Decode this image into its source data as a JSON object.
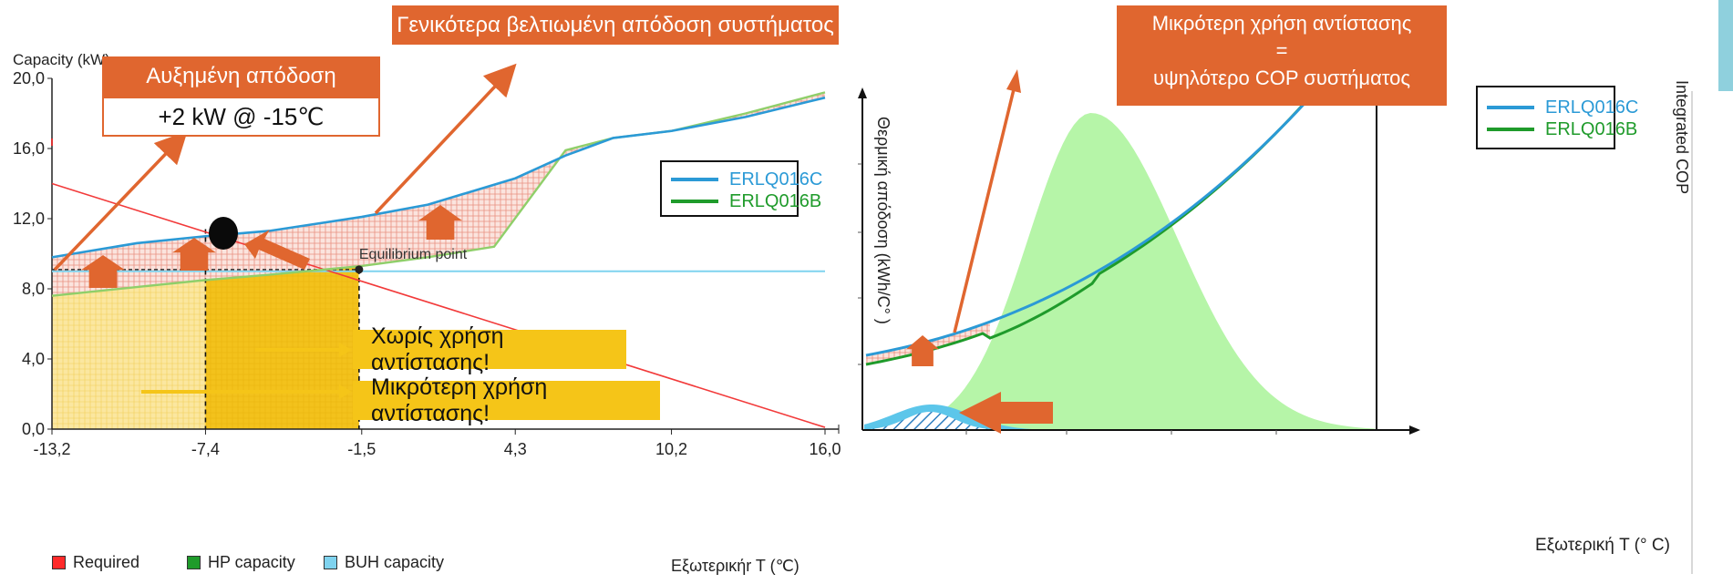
{
  "left_chart": {
    "ylabel": "Capacity (kW)",
    "xlabel": "Εξωτερικήr T (℃)",
    "yticks": [
      "20,0",
      "16,0",
      "12,0",
      "8,0",
      "4,0",
      "0,0"
    ],
    "xticks": [
      "-13,2",
      "-7,4",
      "-1,5",
      "4,3",
      "10,2",
      "16,0"
    ],
    "equilibrium_label": "Equilibrium point",
    "bottom_legend": [
      {
        "label": "Required",
        "color": "#ff2a2a"
      },
      {
        "label": "HP capacity",
        "color": "#1f9b2b"
      },
      {
        "label": "BUH capacity",
        "color": "#7fd3ef"
      }
    ],
    "legend": [
      {
        "label": "ERLQ016C",
        "color": "#2b9ad6"
      },
      {
        "label": "ERLQ016B",
        "color": "#1f9b2b"
      }
    ]
  },
  "right_chart": {
    "ylabel_left": "Θερμική απόδοση (kWh/C° )",
    "ylabel_right": "Integrated COP",
    "xlabel": "Εξωτερική T (° C)",
    "legend": [
      {
        "label": "ERLQ016C",
        "color": "#2b9ad6"
      },
      {
        "label": "ERLQ016B",
        "color": "#1f9b2b"
      }
    ]
  },
  "callouts": {
    "general_performance": "Γενικότερα βελτιωμένη απόδοση συστήματος",
    "increased_performance": "Αυξημένη απόδοση",
    "increased_value": "+2 kW @ -15℃",
    "no_heater": "Χωρίς χρήση αντίστασης!",
    "less_heater": "Μικρότερη χρήση αντίστασης!",
    "cop_line1": "Μικρότερη χρήση αντίστασης",
    "cop_line2": "=",
    "cop_line3": "υψηλότερο COP συστήματος"
  },
  "chart_data": [
    {
      "type": "line",
      "ylabel": "Capacity (kW)",
      "xlabel": "Εξωτερικήr T (℃)",
      "xlim": [
        -13.2,
        16.0
      ],
      "ylim": [
        0,
        20
      ],
      "xticks": [
        -13.2,
        -7.4,
        -1.5,
        4.3,
        10.2,
        16.0
      ],
      "yticks": [
        0,
        4,
        8,
        12,
        16,
        20
      ],
      "series": [
        {
          "name": "ERLQ016C",
          "x": [
            -13.2,
            -10,
            -7.4,
            -5,
            -1.5,
            1,
            4.3,
            6.2,
            8,
            10.2,
            13,
            16.0
          ],
          "values": [
            9.8,
            10.6,
            11.0,
            11.3,
            12.1,
            12.8,
            14.3,
            15.6,
            16.6,
            17.0,
            17.8,
            18.9
          ]
        },
        {
          "name": "ERLQ016B",
          "x": [
            -13.2,
            -10,
            -7.4,
            -5,
            -1.5,
            1,
            3.5,
            6.2,
            8,
            10.2,
            13,
            16.0
          ],
          "values": [
            7.6,
            8.1,
            8.5,
            8.8,
            9.3,
            9.8,
            10.4,
            15.9,
            16.6,
            17.0,
            18.0,
            19.2
          ]
        },
        {
          "name": "Required",
          "x": [
            -13.2,
            16.0
          ],
          "values": [
            14.0,
            0.1
          ]
        },
        {
          "name": "BUH capacity",
          "x": [
            -13.2,
            16.0
          ],
          "values": [
            9.0,
            9.0
          ]
        }
      ],
      "annotations": [
        {
          "text": "Equilibrium point",
          "x": -1.6,
          "y": 9.1
        }
      ]
    },
    {
      "type": "area",
      "ylabel": "Θερμική απόδοση (kWh/C° )",
      "y2label": "Integrated COP",
      "xlabel": "Εξωτερική T (° C)",
      "series": [
        {
          "name": "ERLQ016C"
        },
        {
          "name": "ERLQ016B"
        }
      ]
    }
  ]
}
